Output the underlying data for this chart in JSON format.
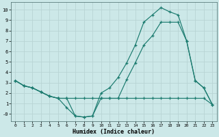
{
  "title": "",
  "xlabel": "Humidex (Indice chaleur)",
  "bg_color": "#cce8e8",
  "line_color": "#1a7a6e",
  "grid_color": "#b8d4d4",
  "xlim": [
    -0.5,
    23.5
  ],
  "ylim": [
    -0.7,
    10.7
  ],
  "xticks": [
    0,
    1,
    2,
    3,
    4,
    5,
    6,
    7,
    8,
    9,
    10,
    11,
    12,
    13,
    14,
    15,
    16,
    17,
    18,
    19,
    20,
    21,
    22,
    23
  ],
  "yticks": [
    0,
    1,
    2,
    3,
    4,
    5,
    6,
    7,
    8,
    9,
    10
  ],
  "ytick_labels": [
    "-0",
    "1",
    "2",
    "3",
    "4",
    "5",
    "6",
    "7",
    "8",
    "9",
    "10"
  ],
  "line1_x": [
    0,
    1,
    2,
    3,
    4,
    5,
    6,
    7,
    8,
    9,
    10,
    11,
    12,
    13,
    14,
    15,
    16,
    17,
    18,
    19,
    20,
    21,
    22,
    23
  ],
  "line1_y": [
    3.2,
    2.7,
    2.5,
    2.1,
    1.7,
    1.5,
    0.6,
    -0.2,
    -0.3,
    -0.2,
    1.5,
    1.5,
    1.5,
    3.3,
    4.9,
    6.6,
    7.5,
    8.8,
    8.8,
    8.8,
    7.0,
    3.2,
    2.5,
    0.9
  ],
  "line2_x": [
    0,
    1,
    2,
    3,
    4,
    5,
    6,
    7,
    8,
    9,
    10,
    11,
    12,
    13,
    14,
    15,
    16,
    17,
    18,
    19,
    20,
    21,
    22,
    23
  ],
  "line2_y": [
    3.2,
    2.7,
    2.5,
    2.1,
    1.7,
    1.5,
    1.5,
    1.5,
    1.5,
    1.5,
    1.5,
    1.5,
    1.5,
    1.5,
    1.5,
    1.5,
    1.5,
    1.5,
    1.5,
    1.5,
    1.5,
    1.5,
    1.5,
    0.9
  ],
  "line3_x": [
    0,
    1,
    2,
    3,
    4,
    5,
    6,
    7,
    8,
    9,
    10,
    11,
    12,
    13,
    14,
    15,
    16,
    17,
    18,
    19,
    20,
    21,
    22,
    23
  ],
  "line3_y": [
    3.2,
    2.7,
    2.5,
    2.1,
    1.7,
    1.5,
    1.5,
    -0.2,
    -0.3,
    -0.2,
    2.0,
    2.5,
    3.5,
    4.9,
    6.6,
    8.8,
    9.5,
    10.2,
    9.8,
    9.5,
    7.0,
    3.2,
    2.5,
    0.9
  ]
}
